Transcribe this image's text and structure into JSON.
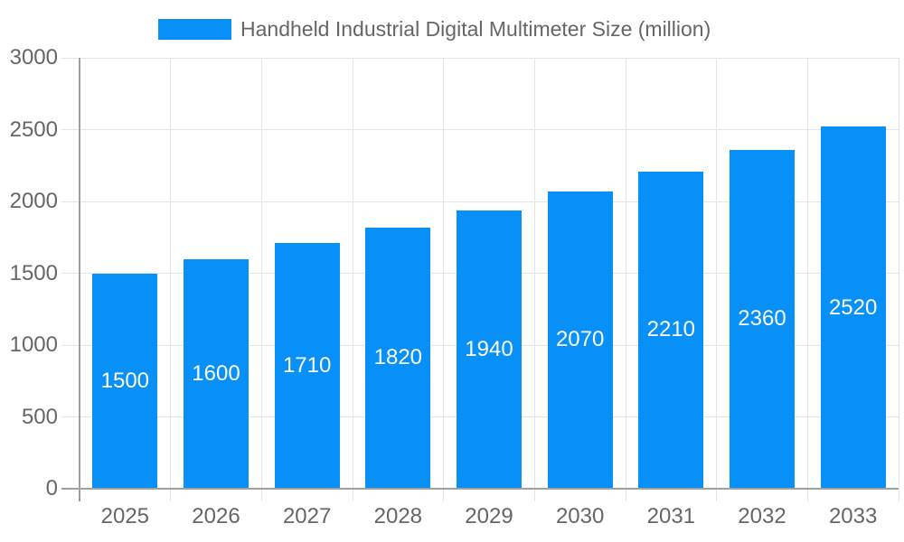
{
  "chart_data": {
    "type": "bar",
    "title": "Handheld Industrial Digital Multimeter Size (million)",
    "legend": [
      "Handheld Industrial Digital Multimeter Size (million)"
    ],
    "legend_position": "top",
    "categories": [
      "2025",
      "2026",
      "2027",
      "2028",
      "2029",
      "2030",
      "2031",
      "2032",
      "2033"
    ],
    "series": [
      {
        "name": "Handheld Industrial Digital Multimeter Size (million)",
        "values": [
          1500,
          1600,
          1710,
          1820,
          1940,
          2070,
          2210,
          2360,
          2520
        ]
      }
    ],
    "values": [
      1500,
      1600,
      1710,
      1820,
      1940,
      2070,
      2210,
      2360,
      2520
    ],
    "bar_value_labels": [
      "1500",
      "1600",
      "1710",
      "1820",
      "1940",
      "2070",
      "2210",
      "2360",
      "2520"
    ],
    "xlabel": "",
    "ylabel": "",
    "ylim": [
      0,
      3000
    ],
    "y_ticks": [
      0,
      500,
      1000,
      1500,
      2000,
      2500,
      3000
    ],
    "grid": true,
    "colors": {
      "bar": "#0890f9",
      "bar_label": "#ffffff",
      "axis_text": "#666666",
      "legend_text": "#666666",
      "grid_line": "#e5e5e5",
      "axis_line": "#a0a0a0",
      "background": "#ffffff"
    }
  }
}
